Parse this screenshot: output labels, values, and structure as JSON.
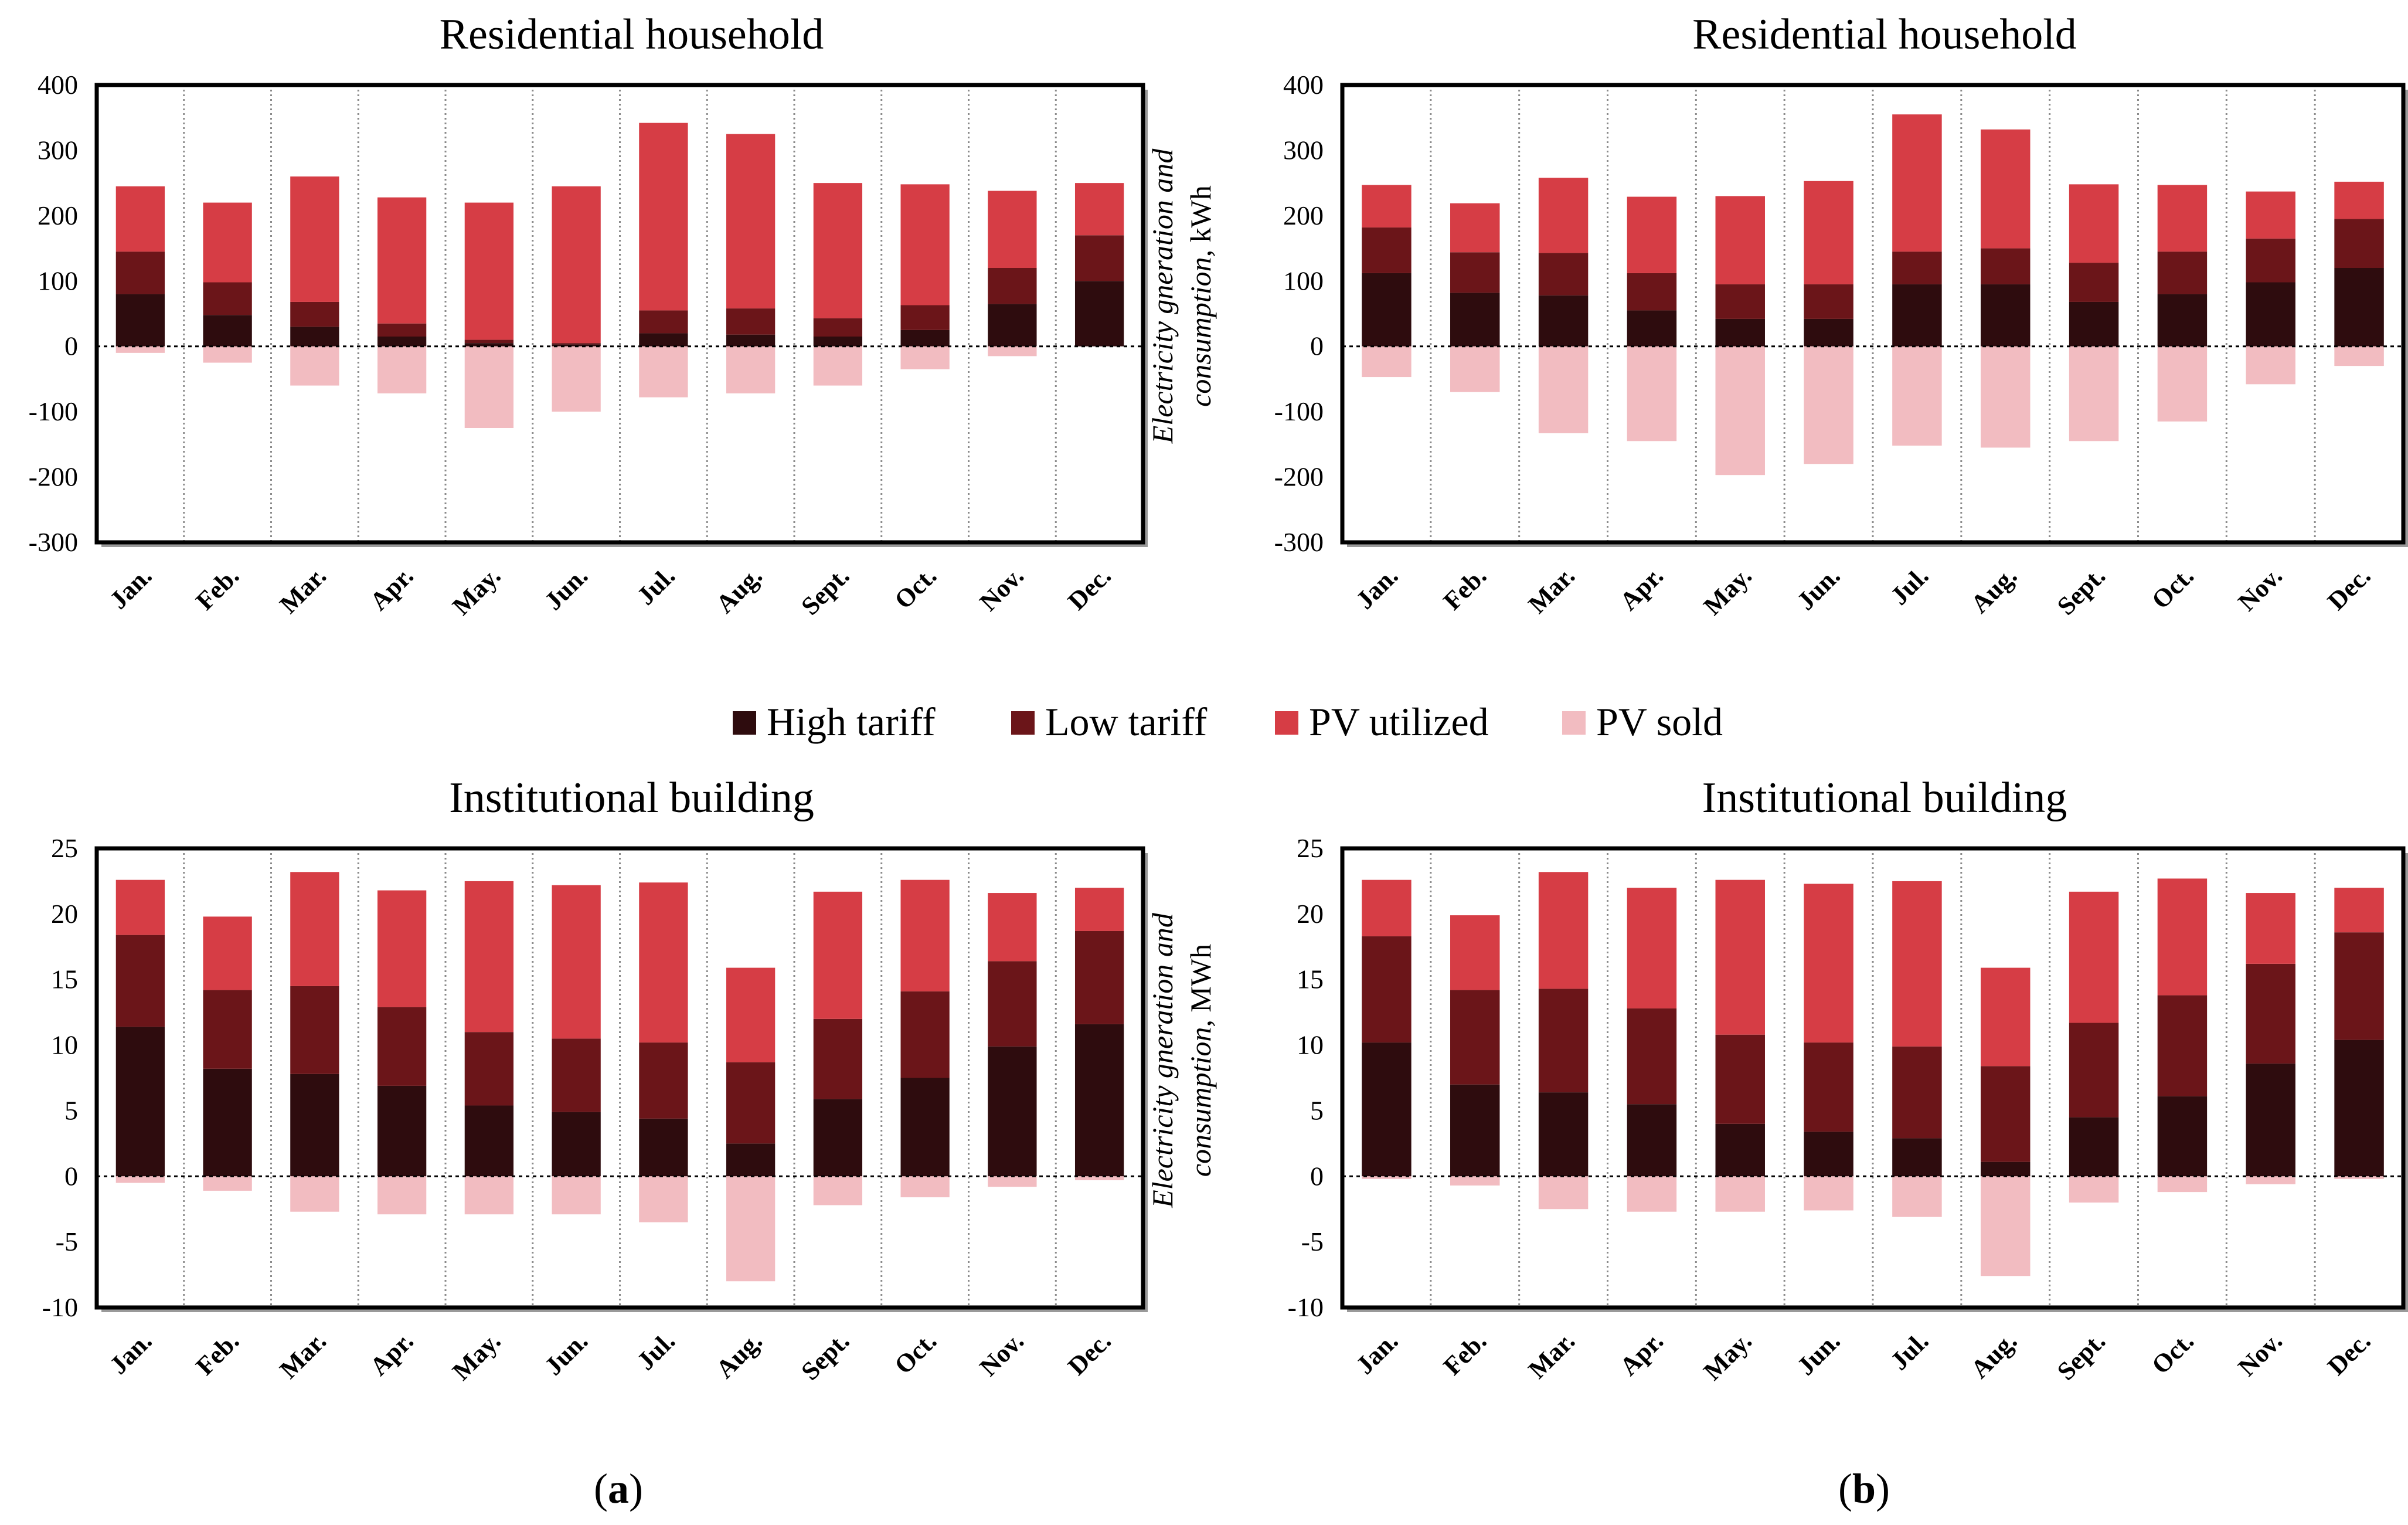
{
  "legend": [
    {
      "key": "high",
      "label": "High tariff",
      "color": "#2e0c0e"
    },
    {
      "key": "low",
      "label": "Low tariff",
      "color": "#6b1519"
    },
    {
      "key": "pv",
      "label": "PV utilized",
      "color": "#d63d45"
    },
    {
      "key": "sold",
      "label": "PV sold",
      "color": "#f2bcc1"
    }
  ],
  "captions": {
    "a": "a",
    "b": "b"
  },
  "chart_data": [
    {
      "id": "a-res",
      "panel": "a",
      "type": "bar",
      "stacked": true,
      "title": "Residential household",
      "ylabel_line1": "",
      "ylabel_line2": "",
      "ylim": [
        -300,
        400
      ],
      "yticks": [
        -300,
        -200,
        -100,
        0,
        100,
        200,
        300,
        400
      ],
      "categories": [
        "Jan.",
        "Feb.",
        "Mar.",
        "Apr.",
        "May.",
        "Jun.",
        "Jul.",
        "Aug.",
        "Sept.",
        "Oct.",
        "Nov.",
        "Dec."
      ],
      "series": [
        {
          "name": "High tariff",
          "values": [
            80,
            48,
            30,
            15,
            5,
            3,
            20,
            18,
            15,
            25,
            65,
            100
          ]
        },
        {
          "name": "Low tariff",
          "values": [
            65,
            50,
            38,
            20,
            5,
            2,
            35,
            40,
            28,
            38,
            55,
            70
          ]
        },
        {
          "name": "PV utilized",
          "values": [
            100,
            122,
            192,
            193,
            210,
            240,
            287,
            267,
            207,
            185,
            118,
            80
          ]
        },
        {
          "name": "PV sold",
          "values": [
            -10,
            -25,
            -60,
            -72,
            -125,
            -100,
            -78,
            -72,
            -60,
            -35,
            -15,
            0
          ]
        }
      ]
    },
    {
      "id": "b-res",
      "panel": "b",
      "type": "bar",
      "stacked": true,
      "title": "Residential household",
      "ylabel_line1": "Electricity gneration and",
      "ylabel_line2": "consumption, kWh",
      "ylim": [
        -300,
        400
      ],
      "yticks": [
        -300,
        -200,
        -100,
        0,
        100,
        200,
        300,
        400
      ],
      "categories": [
        "Jan.",
        "Feb.",
        "Mar.",
        "Apr.",
        "May.",
        "Jun.",
        "Jul.",
        "Aug.",
        "Sept.",
        "Oct.",
        "Nov.",
        "Dec."
      ],
      "series": [
        {
          "name": "High tariff",
          "values": [
            112,
            82,
            78,
            55,
            42,
            42,
            95,
            95,
            68,
            80,
            98,
            120
          ]
        },
        {
          "name": "Low tariff",
          "values": [
            70,
            62,
            65,
            57,
            53,
            53,
            50,
            55,
            60,
            65,
            67,
            75
          ]
        },
        {
          "name": "PV utilized",
          "values": [
            65,
            75,
            115,
            117,
            135,
            158,
            210,
            182,
            120,
            102,
            72,
            57
          ]
        },
        {
          "name": "PV sold",
          "values": [
            -47,
            -70,
            -133,
            -145,
            -197,
            -180,
            -152,
            -155,
            -145,
            -115,
            -58,
            -30
          ]
        }
      ]
    },
    {
      "id": "a-inst",
      "panel": "a",
      "type": "bar",
      "stacked": true,
      "title": "Institutional building",
      "ylabel_line1": "",
      "ylabel_line2": "",
      "ylim": [
        -10,
        25
      ],
      "yticks": [
        -10,
        -5,
        0,
        5,
        10,
        15,
        20,
        25
      ],
      "categories": [
        "Jan.",
        "Feb.",
        "Mar.",
        "Apr.",
        "May.",
        "Jun.",
        "Jul.",
        "Aug.",
        "Sept.",
        "Oct.",
        "Nov.",
        "Dec."
      ],
      "series": [
        {
          "name": "High tariff",
          "values": [
            11.4,
            8.2,
            7.8,
            6.9,
            5.4,
            4.9,
            4.4,
            2.5,
            5.9,
            7.5,
            9.9,
            11.6
          ]
        },
        {
          "name": "Low tariff",
          "values": [
            7.0,
            6.0,
            6.7,
            6.0,
            5.6,
            5.6,
            5.8,
            6.2,
            6.1,
            6.6,
            6.5,
            7.1
          ]
        },
        {
          "name": "PV utilized",
          "values": [
            4.2,
            5.6,
            8.7,
            8.9,
            11.5,
            11.7,
            12.2,
            7.2,
            9.7,
            8.5,
            5.2,
            3.3
          ]
        },
        {
          "name": "PV sold",
          "values": [
            -0.5,
            -1.1,
            -2.7,
            -2.9,
            -2.9,
            -2.9,
            -3.5,
            -8.0,
            -2.2,
            -1.6,
            -0.8,
            -0.3
          ]
        }
      ]
    },
    {
      "id": "b-inst",
      "panel": "b",
      "type": "bar",
      "stacked": true,
      "title": "Institutional building",
      "ylabel_line1": "Electricity gneration and",
      "ylabel_line2": "consumption, MWh",
      "ylim": [
        -10,
        25
      ],
      "yticks": [
        -10,
        -5,
        0,
        5,
        10,
        15,
        20,
        25
      ],
      "categories": [
        "Jan.",
        "Feb.",
        "Mar.",
        "Apr.",
        "May.",
        "Jun.",
        "Jul.",
        "Aug.",
        "Sept.",
        "Oct.",
        "Nov.",
        "Dec."
      ],
      "series": [
        {
          "name": "High tariff",
          "values": [
            10.2,
            7.0,
            6.4,
            5.5,
            4.0,
            3.4,
            2.9,
            1.1,
            4.5,
            6.1,
            8.6,
            10.4
          ]
        },
        {
          "name": "Low tariff",
          "values": [
            8.1,
            7.2,
            7.9,
            7.3,
            6.8,
            6.8,
            7.0,
            7.3,
            7.2,
            7.7,
            7.6,
            8.2
          ]
        },
        {
          "name": "PV utilized",
          "values": [
            4.3,
            5.7,
            8.9,
            9.2,
            11.8,
            12.1,
            12.6,
            7.5,
            10.0,
            8.9,
            5.4,
            3.4
          ]
        },
        {
          "name": "PV sold",
          "values": [
            -0.2,
            -0.7,
            -2.5,
            -2.7,
            -2.7,
            -2.6,
            -3.1,
            -7.6,
            -2.0,
            -1.2,
            -0.6,
            -0.2
          ]
        }
      ]
    }
  ]
}
